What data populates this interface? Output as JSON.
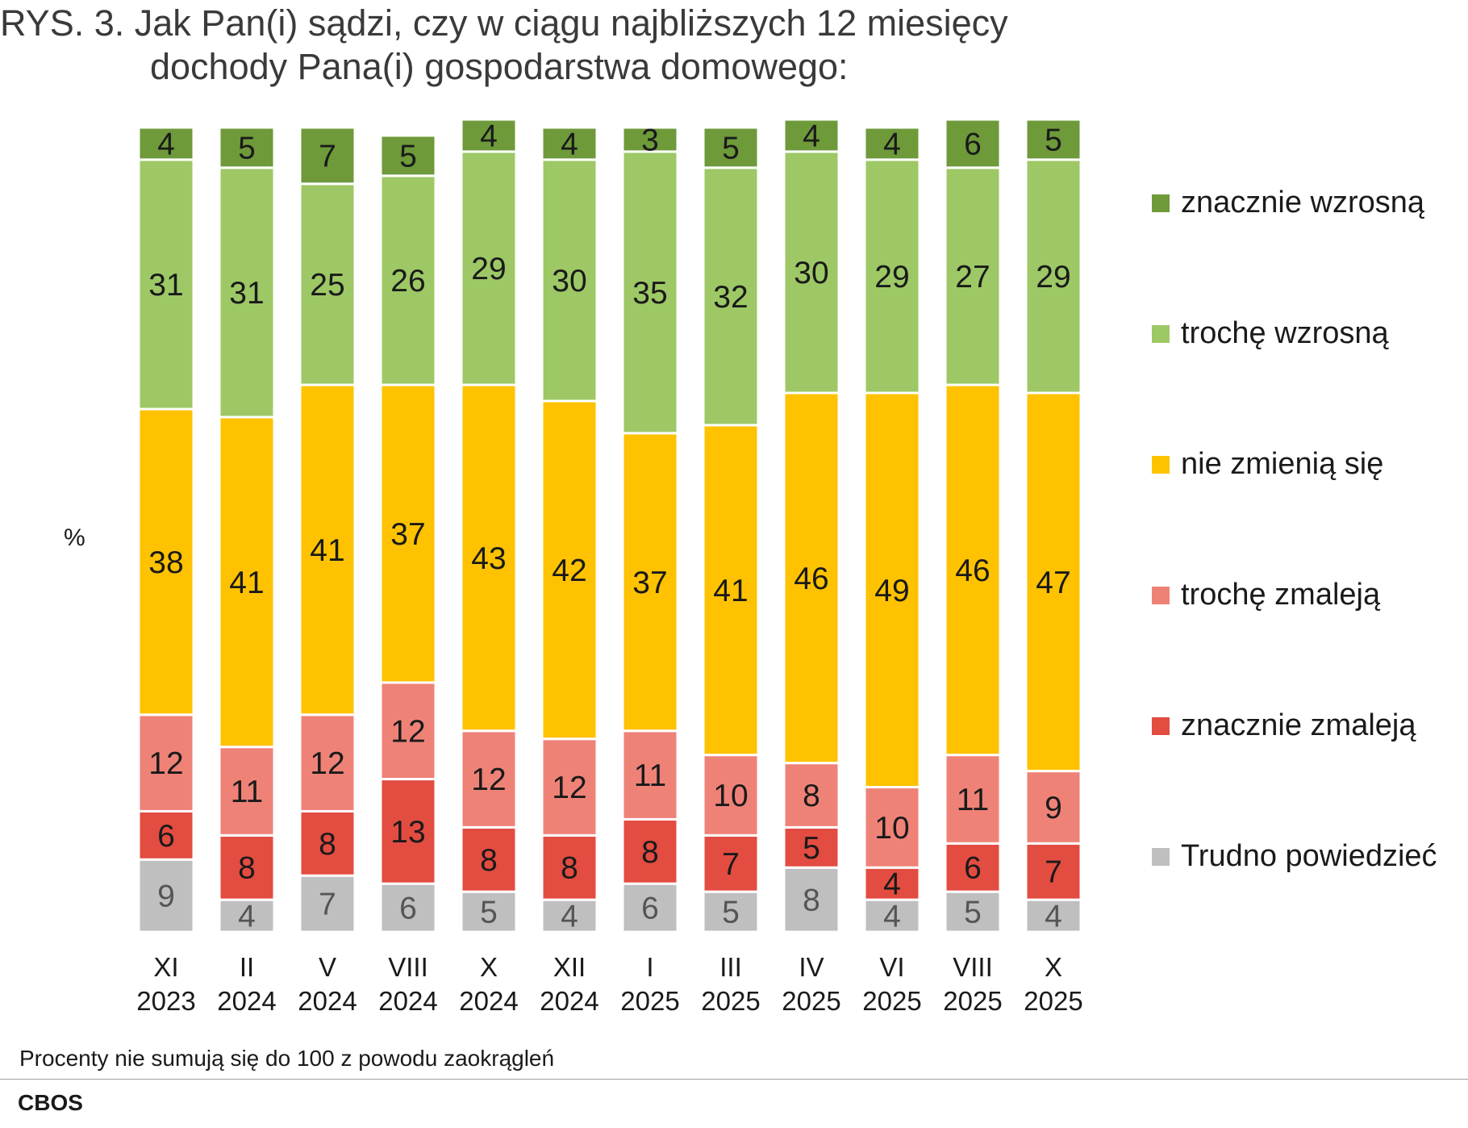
{
  "title": {
    "line1": "RYS. 3. Jak Pan(i) sądzi, czy w ciągu najbliższych 12 miesięcy",
    "line2": "dochody Pana(i) gospodarstwa domowego:"
  },
  "unit_label": "%",
  "footnote": "Procenty nie sumują się do 100 z powodu zaokrągleń",
  "source": "CBOS",
  "colors": {
    "znacznie_wzrosna": "#6e9a3a",
    "troche_wzrosna": "#9dc865",
    "nie_zmienia_sie": "#fec200",
    "troche_zmaleja": "#ef8277",
    "znacznie_zmaleja": "#e34c41",
    "trudno_powiedziec": "#bfbfbf"
  },
  "chart_data": {
    "type": "bar",
    "stacked": true,
    "orientation": "vertical",
    "categories": [
      [
        "XI",
        "2023"
      ],
      [
        "II",
        "2024"
      ],
      [
        "V",
        "2024"
      ],
      [
        "VIII",
        "2024"
      ],
      [
        "X",
        "2024"
      ],
      [
        "XII",
        "2024"
      ],
      [
        "I",
        "2025"
      ],
      [
        "III",
        "2025"
      ],
      [
        "IV",
        "2025"
      ],
      [
        "VI",
        "2025"
      ],
      [
        "VIII",
        "2025"
      ],
      [
        "X",
        "2025"
      ]
    ],
    "series": [
      {
        "name": "Trudno powiedzieć",
        "color": "#bfbfbf",
        "values": [
          9,
          4,
          7,
          6,
          5,
          4,
          6,
          5,
          8,
          4,
          5,
          4
        ]
      },
      {
        "name": "znacznie zmaleją",
        "color": "#e34c41",
        "values": [
          6,
          8,
          8,
          13,
          8,
          8,
          8,
          7,
          5,
          4,
          6,
          7
        ]
      },
      {
        "name": "trochę zmaleją",
        "color": "#ef8277",
        "values": [
          12,
          11,
          12,
          12,
          12,
          12,
          11,
          10,
          8,
          10,
          11,
          9
        ]
      },
      {
        "name": "nie zmienią się",
        "color": "#fec200",
        "values": [
          38,
          41,
          41,
          37,
          43,
          42,
          37,
          41,
          46,
          49,
          46,
          47
        ]
      },
      {
        "name": "trochę wzrosną",
        "color": "#9dc865",
        "values": [
          31,
          31,
          25,
          26,
          29,
          30,
          35,
          32,
          30,
          29,
          27,
          29
        ]
      },
      {
        "name": "znacznie wzrosną",
        "color": "#6e9a3a",
        "values": [
          4,
          5,
          7,
          5,
          4,
          4,
          3,
          5,
          4,
          4,
          6,
          5
        ]
      }
    ],
    "legend": {
      "position": "right",
      "order": [
        "znacznie wzrosną",
        "trochę wzrosną",
        "nie zmienią się",
        "trochę zmaleją",
        "znacznie zmaleją",
        "Trudno powiedzieć"
      ]
    },
    "ylabel": "%",
    "grid": false
  }
}
